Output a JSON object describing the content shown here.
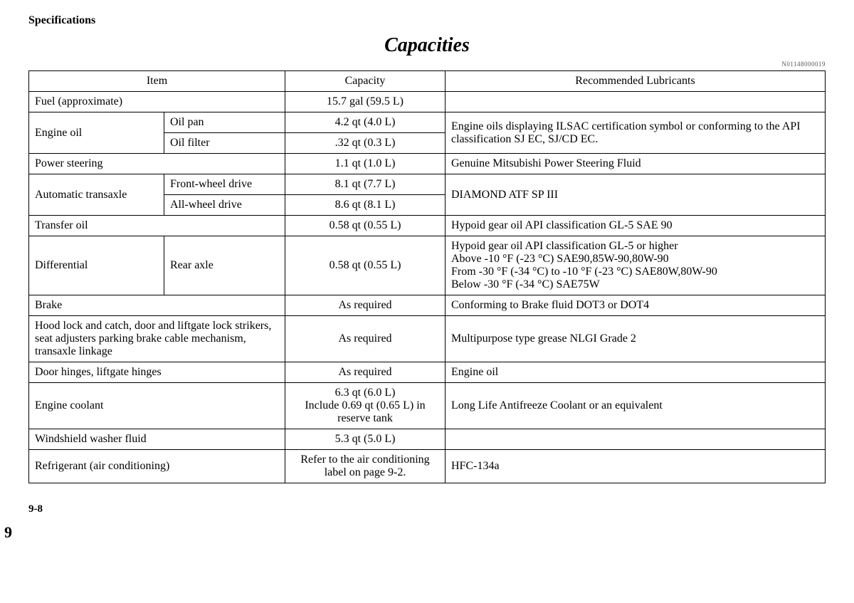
{
  "section_header": "Specifications",
  "title": "Capacities",
  "doc_code": "N01148000019",
  "page_marker": "9",
  "page_number": "9-8",
  "headers": {
    "item": "Item",
    "capacity": "Capacity",
    "lubricants": "Recommended Lubricants"
  },
  "rows": {
    "fuel": {
      "item": "Fuel (approximate)",
      "cap": "15.7 gal (59.5 L)",
      "lub": ""
    },
    "engine_oil": {
      "item": "Engine oil",
      "pan_item": "Oil pan",
      "pan_cap": "4.2 qt (4.0 L)",
      "filter_item": "Oil filter",
      "filter_cap": ".32 qt (0.3 L)",
      "lub": "Engine oils displaying ILSAC certification symbol or conforming to the API classification SJ EC, SJ/CD EC."
    },
    "power_steering": {
      "item": "Power steering",
      "cap": "1.1 qt (1.0 L)",
      "lub": "Genuine Mitsubishi Power Steering Fluid"
    },
    "auto_trans": {
      "item": "Automatic transaxle",
      "fwd_item": "Front-wheel drive",
      "fwd_cap": "8.1 qt (7.7 L)",
      "awd_item": "All-wheel drive",
      "awd_cap": "8.6 qt (8.1 L)",
      "lub": "DIAMOND ATF SP III"
    },
    "transfer": {
      "item": "Transfer oil",
      "cap": "0.58 qt (0.55 L)",
      "lub": "Hypoid gear oil API classification GL-5 SAE 90"
    },
    "differential": {
      "item": "Differential",
      "sub": "Rear axle",
      "cap": "0.58 qt (0.55 L)",
      "lub": "Hypoid gear oil API classification GL-5 or higher\nAbove -10 °F (-23 °C) SAE90,85W-90,80W-90\nFrom -30 °F (-34 °C) to -10 °F (-23 °C) SAE80W,80W-90\nBelow -30 °F (-34 °C) SAE75W"
    },
    "brake": {
      "item": "Brake",
      "cap": "As required",
      "lub": "Conforming to Brake fluid DOT3 or DOT4"
    },
    "hood_lock": {
      "item": "Hood lock and catch, door and liftgate lock strikers, seat adjusters parking brake cable mechanism, transaxle linkage",
      "cap": "As required",
      "lub": "Multipurpose type grease NLGI Grade 2"
    },
    "hinges": {
      "item": "Door hinges, liftgate hinges",
      "cap": "As required",
      "lub": "Engine oil"
    },
    "coolant": {
      "item": "Engine coolant",
      "cap": "6.3 qt (6.0 L)\nInclude 0.69 qt (0.65 L) in reserve tank",
      "lub": "Long Life Antifreeze Coolant or an equivalent"
    },
    "washer": {
      "item": "Windshield washer fluid",
      "cap": "5.3 qt (5.0 L)",
      "lub": ""
    },
    "refrigerant": {
      "item": "Refrigerant (air conditioning)",
      "cap": "Refer to the air conditioning label on page 9-2.",
      "lub": "HFC-134a"
    }
  }
}
